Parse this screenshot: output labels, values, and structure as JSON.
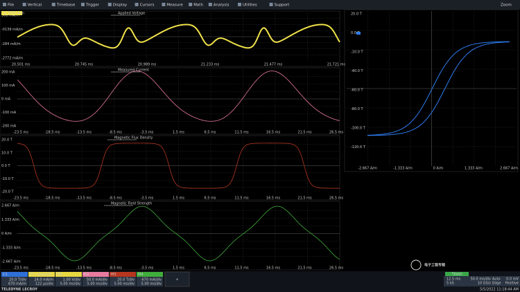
{
  "menu": [
    "File",
    "Vertical",
    "Timebase",
    "Trigger",
    "Display",
    "Cursors",
    "Measure",
    "Math",
    "Analysis",
    "Utilities",
    "Support"
  ],
  "zoom": "Zoom",
  "panels": [
    {
      "label": "Applied Voltage",
      "color": "#f2e34a",
      "tag": "-1.3377 A/m",
      "y_labels": [
        "568 mA/m",
        "-0139 mA/m",
        "-284 mA/m",
        "-2772 mA/m"
      ],
      "x_labels": [
        "20.501 ms",
        "20.745 ms",
        "20.989 ms",
        "21.233 ms",
        "21.477 ms",
        "21.721 ms"
      ]
    },
    {
      "label": "Measured Current",
      "color": "#e87aa0",
      "y_labels": [
        "200 mA",
        "100 mA",
        "0 mA",
        "-100 mA",
        "-200 mA"
      ],
      "x_labels": [
        "-23.5 ms",
        "-18.5 ms",
        "-13.5 ms",
        "-8.5 ms",
        "-3.5 ms",
        "1.5 ms",
        "6.5 ms",
        "11.5 ms",
        "16.5 ms",
        "21.5 ms",
        "26.5 ms"
      ]
    },
    {
      "label": "Magnetic Flux Density",
      "color": "#b8361f",
      "y_labels": [
        "20.0 T",
        "10.0 T",
        "0.0 T",
        "-10.0 T",
        "-20.0 T"
      ],
      "x_labels": [
        "-23.5 ms",
        "-18.5 ms",
        "-13.5 ms",
        "-8.5 ms",
        "-3.5 ms",
        "1.5 ms",
        "6.5 ms",
        "11.5 ms",
        "16.5 ms",
        "21.5 ms",
        "26.5 ms"
      ]
    },
    {
      "label": "Magnetic Field Strength",
      "color": "#3fae3a",
      "y_labels": [
        "2.667 A/m",
        "1.333 A/m",
        "0 A/m",
        "-1.333 A/m",
        "-2.667 A/m"
      ],
      "x_labels": [
        "-23.5 ms",
        "-18.5 ms",
        "-13.5 ms",
        "-8.5 ms",
        "-3.5 ms",
        "1.5 ms",
        "6.5 ms",
        "11.5 ms",
        "16.5 ms",
        "21.5 ms",
        "26.5 ms"
      ]
    }
  ],
  "xy": {
    "color": "#2f7cf0",
    "y_labels": [
      "20.0 T",
      "0.0 T",
      "-10.0 T",
      "-40.0 T",
      "-60.0 T",
      "-80.0 T",
      "-100.0 T",
      "-120.0 T"
    ],
    "x_labels": [
      "-2.667 A/m",
      "-1.333 A/m",
      "0 A/m",
      "1.333 A/m",
      "2.667 A/m"
    ]
  },
  "tiles": [
    {
      "name": "C1",
      "color": "#2f6fd8",
      "lines": [
        "20.0 T/div",
        "670 mA/m"
      ]
    },
    {
      "name": "Z1",
      "sub": "zoom(H)",
      "color": "#e8d840",
      "lines": [
        "24.0 mA/m",
        "122 µs/div"
      ]
    },
    {
      "name": "M1",
      "color": "#e8d840",
      "lines": [
        "1.00 V/div",
        "5.00 ms/div"
      ]
    },
    {
      "name": "M2",
      "color": "#e87aa0",
      "lines": [
        "50.0 mA/div",
        "5.00 ms/div"
      ]
    },
    {
      "name": "M3",
      "color": "#b8361f",
      "lines": [
        "20.0 T/div",
        "5.00 ms/div"
      ]
    },
    {
      "name": "M4",
      "color": "#3fae3a",
      "lines": [
        "670 mA/div",
        "5.00 ms/div"
      ]
    }
  ],
  "add": "+",
  "timebase": {
    "name": "Tbase",
    "lines": [
      "12.5 ms",
      "5 kS"
    ],
    "rate": [
      "50.0 ms/div",
      "10 GS/s"
    ]
  },
  "trigger": {
    "name": "Trigger",
    "lines": [
      "Auto",
      "Edge"
    ],
    "level": [
      "0.0 mV",
      "Positive"
    ]
  },
  "date": "5/5/2022 11:18:44 AM",
  "logo": "TELEDYNE LECROY",
  "watermark": "电子工程专辑"
}
